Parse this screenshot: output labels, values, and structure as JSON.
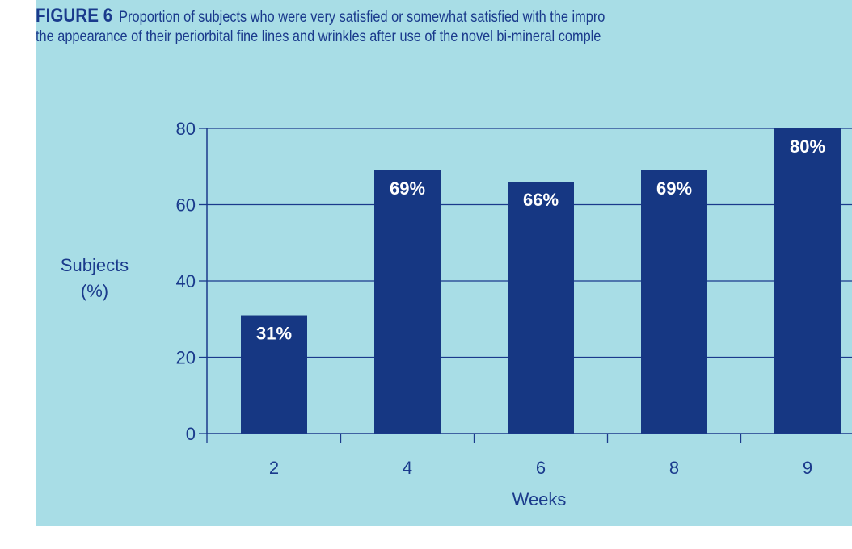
{
  "figure": {
    "label": "FIGURE 6",
    "caption_line1": "Proportion of subjects who were very satisfied or somewhat satisfied with the impro",
    "caption_line2": "the appearance of their periorbital fine lines and wrinkles after use of the novel bi-mineral comple"
  },
  "chart_data": {
    "type": "bar",
    "categories": [
      "2",
      "4",
      "6",
      "8",
      "9"
    ],
    "values": [
      31,
      69,
      66,
      69,
      80
    ],
    "data_labels": [
      "31%",
      "69%",
      "66%",
      "69%",
      "80%"
    ],
    "xlabel": "Weeks",
    "ylabel_line1": "Subjects",
    "ylabel_line2": "(%)",
    "ylim": [
      0,
      80
    ],
    "yticks": [
      0,
      20,
      40,
      60,
      80
    ],
    "grid": true,
    "colors": {
      "bar": "#163783",
      "axis": "#1a3a8c",
      "text": "#1a3a8c",
      "background": "#a8dde6",
      "label": "#ffffff"
    }
  }
}
